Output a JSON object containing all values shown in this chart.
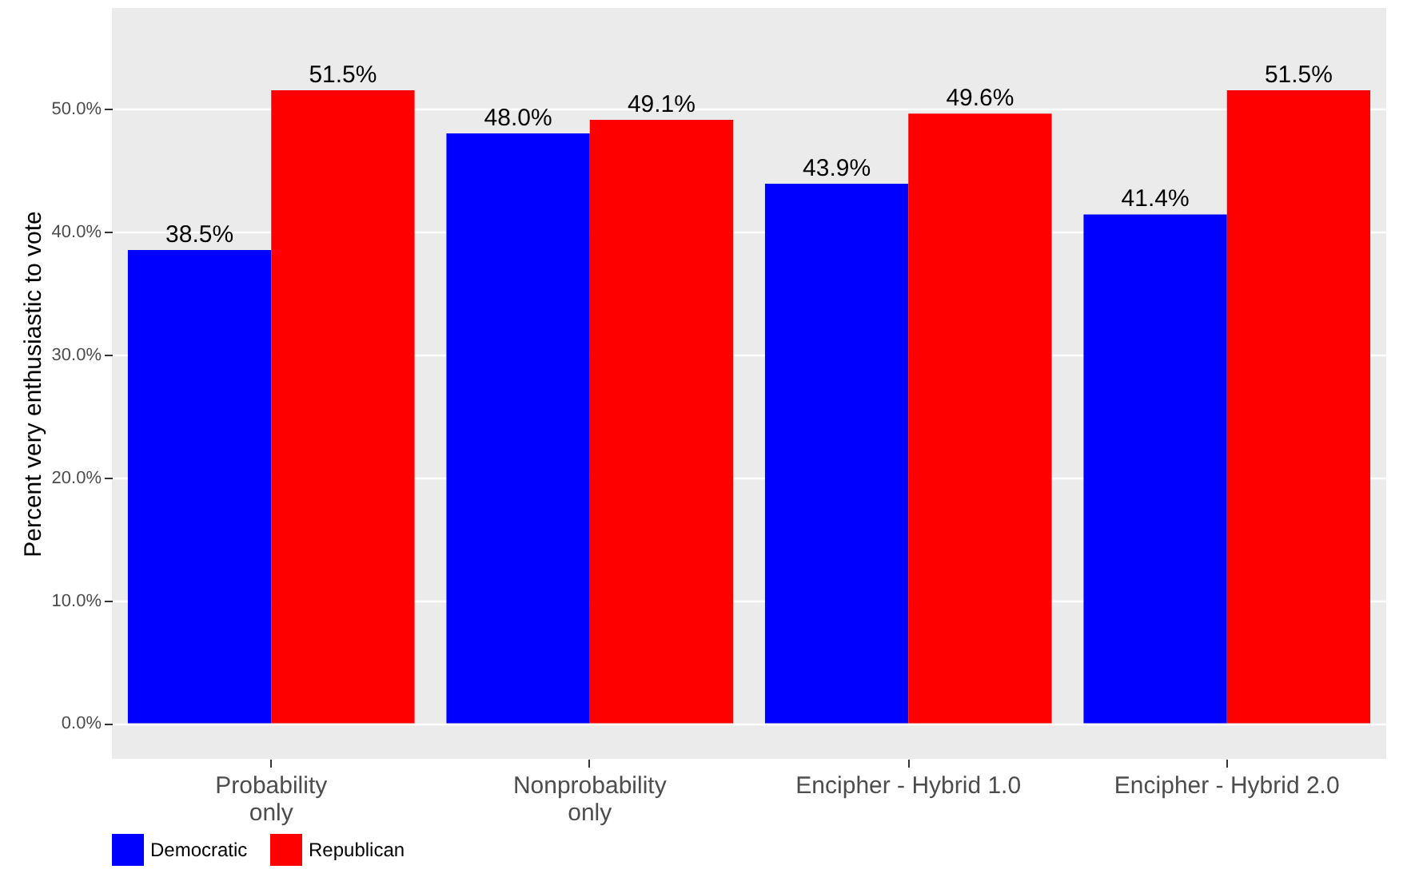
{
  "chart_data": {
    "type": "bar",
    "ylabel": "Percent very enthusiastic to vote",
    "categories": [
      "Probability\nonly",
      "Nonprobability\nonly",
      "Encipher - Hybrid 1.0",
      "Encipher - Hybrid 2.0"
    ],
    "series": [
      {
        "name": "Democratic",
        "color": "#0000ff",
        "values": [
          38.5,
          48.0,
          43.9,
          41.4
        ],
        "value_labels": [
          "38.5%",
          "48.0%",
          "43.9%",
          "41.4%"
        ]
      },
      {
        "name": "Republican",
        "color": "#ff0000",
        "values": [
          51.5,
          49.1,
          49.6,
          51.5
        ],
        "value_labels": [
          "51.5%",
          "49.1%",
          "49.6%",
          "51.5%"
        ]
      }
    ],
    "ylim": [
      -2.9,
      58.2
    ],
    "yticks": [
      {
        "value": 0,
        "label": "0.0%"
      },
      {
        "value": 10,
        "label": "10.0%"
      },
      {
        "value": 20,
        "label": "20.0%"
      },
      {
        "value": 30,
        "label": "30.0%"
      },
      {
        "value": 40,
        "label": "40.0%"
      },
      {
        "value": 50,
        "label": "50.0%"
      }
    ],
    "grid": true,
    "legend": "bottom"
  }
}
